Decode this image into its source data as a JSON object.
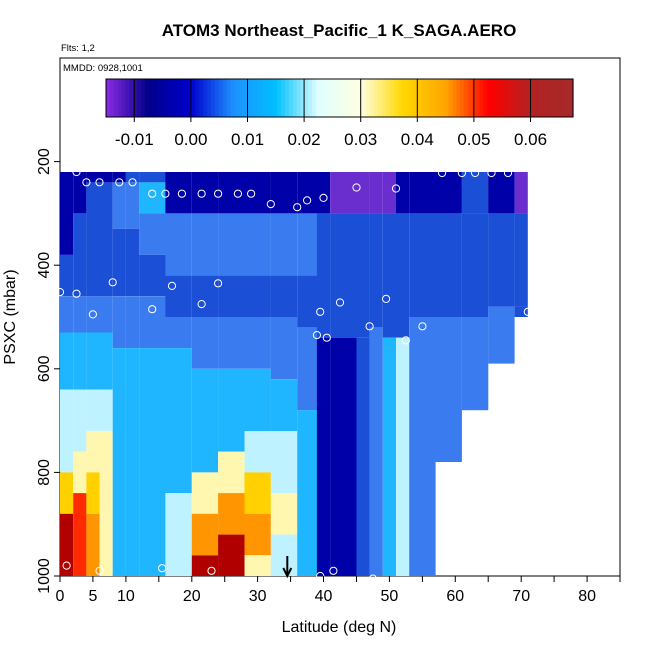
{
  "chart_data": {
    "type": "heatmap",
    "title": "ATOM3 Northeast_Pacific_1 K_SAGA.AERO",
    "notes": [
      "Flts: 1,2",
      "MMDD: 0928,1001"
    ],
    "xlabel": "Latitude (deg N)",
    "ylabel": "PSXC (mbar)",
    "xlim": [
      0,
      85
    ],
    "ylim": [
      1000,
      0
    ],
    "x_ticks": [
      0,
      5,
      10,
      20,
      30,
      40,
      50,
      60,
      70,
      80
    ],
    "y_ticks": [
      200,
      400,
      600,
      800,
      1000
    ],
    "colorbar": {
      "range": [
        -0.015,
        0.0675
      ],
      "ticks": [
        -0.01,
        0.0,
        0.01,
        0.02,
        0.03,
        0.04,
        0.05,
        0.06
      ],
      "tick_labels": [
        "-0.01",
        "0.00",
        "0.01",
        "0.02",
        "0.03",
        "0.04",
        "0.05",
        "0.06"
      ],
      "colors": [
        "#8a2be2",
        "#00008b",
        "#0000cd",
        "#1e90ff",
        "#00bfff",
        "#e0ffff",
        "#ffffe0",
        "#ffd700",
        "#ffa500",
        "#ff0000",
        "#b22222",
        "#a52a2a"
      ]
    },
    "pressure_levels": [
      220,
      255,
      290,
      325,
      360,
      395,
      430,
      465,
      495,
      530,
      565,
      600,
      640,
      680,
      720,
      760,
      800,
      840,
      880,
      915,
      955,
      990
    ],
    "lat_bins": [
      [
        0,
        2
      ],
      [
        2,
        4
      ],
      [
        4,
        6
      ],
      [
        6,
        8
      ],
      [
        8,
        10
      ],
      [
        10,
        12
      ],
      [
        12,
        16
      ],
      [
        16,
        20
      ],
      [
        20,
        24
      ],
      [
        24,
        28
      ],
      [
        28,
        32
      ],
      [
        32,
        36
      ],
      [
        36,
        39
      ],
      [
        39,
        41
      ],
      [
        41,
        45
      ],
      [
        45,
        47
      ],
      [
        47,
        49
      ],
      [
        49,
        51
      ],
      [
        51,
        53
      ],
      [
        53,
        57
      ],
      [
        57,
        61
      ],
      [
        61,
        65
      ],
      [
        65,
        69
      ],
      [
        69,
        71
      ]
    ],
    "columns": [
      {
        "layers": [
          [
            1,
            380
          ],
          [
            2,
            460
          ],
          [
            3,
            530
          ],
          [
            4,
            640
          ],
          [
            5,
            800
          ],
          [
            7,
            880
          ],
          [
            10,
            1000
          ]
        ]
      },
      {
        "layers": [
          [
            1,
            300
          ],
          [
            2,
            460
          ],
          [
            3,
            530
          ],
          [
            4,
            640
          ],
          [
            5,
            760
          ],
          [
            6,
            840
          ],
          [
            9,
            1000
          ]
        ]
      },
      {
        "layers": [
          [
            1,
            240
          ],
          [
            2,
            460
          ],
          [
            3,
            530
          ],
          [
            4,
            640
          ],
          [
            5,
            720
          ],
          [
            6,
            800
          ],
          [
            7,
            880
          ],
          [
            8,
            1000
          ]
        ]
      },
      {
        "layers": [
          [
            1,
            240
          ],
          [
            2,
            460
          ],
          [
            3,
            530
          ],
          [
            4,
            640
          ],
          [
            5,
            720
          ],
          [
            6,
            1000
          ]
        ]
      },
      {
        "layers": [
          [
            1,
            240
          ],
          [
            3,
            330
          ],
          [
            2,
            460
          ],
          [
            3,
            560
          ],
          [
            4,
            1000
          ]
        ]
      },
      {
        "layers": [
          [
            2,
            240
          ],
          [
            3,
            330
          ],
          [
            2,
            460
          ],
          [
            3,
            560
          ],
          [
            4,
            1000
          ]
        ]
      },
      {
        "layers": [
          [
            2,
            240
          ],
          [
            4,
            300
          ],
          [
            3,
            380
          ],
          [
            2,
            460
          ],
          [
            3,
            560
          ],
          [
            4,
            1000
          ]
        ]
      },
      {
        "layers": [
          [
            1,
            300
          ],
          [
            3,
            420
          ],
          [
            2,
            500
          ],
          [
            3,
            560
          ],
          [
            4,
            840
          ],
          [
            5,
            1000
          ]
        ]
      },
      {
        "layers": [
          [
            1,
            300
          ],
          [
            3,
            420
          ],
          [
            2,
            500
          ],
          [
            3,
            600
          ],
          [
            4,
            800
          ],
          [
            6,
            880
          ],
          [
            8,
            960
          ],
          [
            10,
            1000
          ]
        ]
      },
      {
        "layers": [
          [
            1,
            300
          ],
          [
            3,
            420
          ],
          [
            2,
            500
          ],
          [
            3,
            600
          ],
          [
            4,
            760
          ],
          [
            6,
            840
          ],
          [
            8,
            920
          ],
          [
            10,
            1000
          ]
        ]
      },
      {
        "layers": [
          [
            1,
            300
          ],
          [
            3,
            420
          ],
          [
            2,
            500
          ],
          [
            3,
            600
          ],
          [
            4,
            720
          ],
          [
            5,
            800
          ],
          [
            7,
            880
          ],
          [
            8,
            960
          ],
          [
            6,
            1000
          ]
        ]
      },
      {
        "layers": [
          [
            1,
            300
          ],
          [
            3,
            420
          ],
          [
            2,
            500
          ],
          [
            3,
            620
          ],
          [
            4,
            720
          ],
          [
            5,
            840
          ],
          [
            6,
            920
          ],
          [
            5,
            1000
          ]
        ]
      },
      {
        "layers": [
          [
            1,
            300
          ],
          [
            3,
            420
          ],
          [
            2,
            520
          ],
          [
            3,
            680
          ],
          [
            4,
            1000
          ]
        ]
      },
      {
        "layers": [
          [
            1,
            300
          ],
          [
            2,
            540
          ],
          [
            1,
            1000
          ]
        ]
      },
      {
        "layers": [
          [
            0,
            300
          ],
          [
            2,
            540
          ],
          [
            1,
            1000
          ]
        ]
      },
      {
        "layers": [
          [
            0,
            300
          ],
          [
            2,
            540
          ],
          [
            2,
            1000
          ]
        ]
      },
      {
        "layers": [
          [
            0,
            300
          ],
          [
            2,
            520
          ],
          [
            3,
            1000
          ]
        ]
      },
      {
        "layers": [
          [
            0,
            300
          ],
          [
            2,
            540
          ],
          [
            4,
            1000
          ]
        ]
      },
      {
        "layers": [
          [
            1,
            300
          ],
          [
            2,
            540
          ],
          [
            5,
            1000
          ]
        ]
      },
      {
        "layers": [
          [
            1,
            300
          ],
          [
            2,
            500
          ],
          [
            3,
            1000
          ]
        ]
      },
      {
        "layers": [
          [
            1,
            300
          ],
          [
            2,
            500
          ],
          [
            3,
            780
          ]
        ]
      },
      {
        "layers": [
          [
            2,
            300
          ],
          [
            2,
            500
          ],
          [
            3,
            680
          ]
        ]
      },
      {
        "layers": [
          [
            1,
            300
          ],
          [
            2,
            480
          ],
          [
            3,
            590
          ]
        ]
      },
      {
        "layers": [
          [
            0,
            300
          ],
          [
            2,
            480
          ],
          [
            2,
            500
          ]
        ]
      }
    ],
    "obs_points": [
      {
        "lat": 11,
        "p": 205
      },
      {
        "lat": 19.5,
        "p": 198
      },
      {
        "lat": 26.5,
        "p": 190
      },
      {
        "lat": 29,
        "p": 200
      },
      {
        "lat": 2.5,
        "p": 220
      },
      {
        "lat": 4,
        "p": 240
      },
      {
        "lat": 6,
        "p": 240
      },
      {
        "lat": 9,
        "p": 240
      },
      {
        "lat": 11,
        "p": 240
      },
      {
        "lat": 14,
        "p": 262
      },
      {
        "lat": 16,
        "p": 262
      },
      {
        "lat": 18.5,
        "p": 262
      },
      {
        "lat": 21.5,
        "p": 262
      },
      {
        "lat": 24,
        "p": 262
      },
      {
        "lat": 27,
        "p": 262
      },
      {
        "lat": 29,
        "p": 262
      },
      {
        "lat": 32,
        "p": 282
      },
      {
        "lat": 36,
        "p": 288
      },
      {
        "lat": 37.5,
        "p": 275
      },
      {
        "lat": 40,
        "p": 270
      },
      {
        "lat": 45,
        "p": 250
      },
      {
        "lat": 51,
        "p": 252
      },
      {
        "lat": 58,
        "p": 222
      },
      {
        "lat": 61,
        "p": 222
      },
      {
        "lat": 63,
        "p": 222
      },
      {
        "lat": 65.5,
        "p": 222
      },
      {
        "lat": 68,
        "p": 222
      },
      {
        "lat": 0,
        "p": 452
      },
      {
        "lat": 2.5,
        "p": 455
      },
      {
        "lat": 8,
        "p": 433
      },
      {
        "lat": 17,
        "p": 440
      },
      {
        "lat": 24,
        "p": 435
      },
      {
        "lat": 5,
        "p": 495
      },
      {
        "lat": 14,
        "p": 485
      },
      {
        "lat": 21.5,
        "p": 475
      },
      {
        "lat": 39.5,
        "p": 490
      },
      {
        "lat": 42.5,
        "p": 472
      },
      {
        "lat": 49.5,
        "p": 465
      },
      {
        "lat": 47,
        "p": 518
      },
      {
        "lat": 55,
        "p": 518
      },
      {
        "lat": 39,
        "p": 535
      },
      {
        "lat": 40.5,
        "p": 540
      },
      {
        "lat": 52.5,
        "p": 545
      },
      {
        "lat": 71,
        "p": 490
      },
      {
        "lat": 1,
        "p": 980
      },
      {
        "lat": 6,
        "p": 990
      },
      {
        "lat": 15.5,
        "p": 985
      },
      {
        "lat": 23,
        "p": 990
      },
      {
        "lat": 39.5,
        "p": 1000
      },
      {
        "lat": 41.5,
        "p": 990
      },
      {
        "lat": 47.5,
        "p": 1005
      }
    ],
    "marker": {
      "lat": 34.5,
      "label": "arrow"
    }
  }
}
